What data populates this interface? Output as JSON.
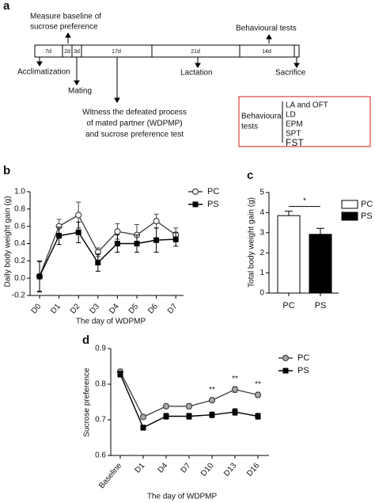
{
  "timeline": {
    "label": "a",
    "top_notes": [
      [
        "Measure baseline of",
        "sucrose preference"
      ],
      [
        "Behavioural tests"
      ]
    ],
    "segments": [
      "7d",
      "2d",
      "3d",
      "17d",
      "21d",
      "14d"
    ],
    "events": [
      "Acclimatization",
      "Mating",
      "Lactation",
      "Sacrifice"
    ],
    "witness": [
      "Witness the defeated process",
      "of mated partner (WDPMP)",
      "and sucrose preference test"
    ],
    "test_box": {
      "title": [
        "Behavioural",
        "tests"
      ],
      "items": [
        "LA and OFT",
        "LD",
        "EPM",
        "SPT",
        "FST"
      ]
    }
  },
  "chart_data": [
    {
      "label": "b",
      "type": "line",
      "y_label": "Daily body weight gain (g)",
      "x_label": "The day of WDPMP",
      "categories": [
        "D0",
        "D1",
        "D2",
        "D3",
        "D4",
        "D5",
        "D6",
        "D7"
      ],
      "ylim": [
        -0.2,
        1.0
      ],
      "yticks": [
        -0.2,
        {
          "value": 0,
          "label": "0.0"
        },
        0.2,
        0.4,
        0.6,
        0.8,
        {
          "value": 1,
          "label": "1.0"
        }
      ],
      "series": [
        {
          "name": "PC",
          "color": "#444444",
          "marker": "open-circle",
          "values": [
            0.02,
            0.6,
            0.73,
            0.3,
            0.54,
            0.5,
            0.66,
            0.5
          ],
          "errors": [
            0.17,
            0.08,
            0.15,
            0.05,
            0.09,
            0.12,
            0.08,
            0.08
          ]
        },
        {
          "name": "PS",
          "color": "#000000",
          "marker": "square",
          "values": [
            0.02,
            0.49,
            0.53,
            0.18,
            0.4,
            0.4,
            0.44,
            0.45
          ],
          "errors": [
            0.18,
            0.1,
            0.12,
            0.1,
            0.1,
            0.1,
            0.14,
            0.08
          ]
        }
      ]
    },
    {
      "label": "c",
      "type": "bar",
      "y_label": "Total body weight gain (g)",
      "categories": [
        "PC",
        "PS"
      ],
      "values": [
        3.85,
        2.92
      ],
      "errors": [
        0.22,
        0.3
      ],
      "colors": [
        "#ffffff",
        "#000000"
      ],
      "significance": "*",
      "ylim": [
        0,
        5
      ],
      "yticks": [
        0,
        1,
        2,
        3,
        4,
        5
      ]
    },
    {
      "label": "d",
      "type": "line",
      "y_label": "Sucrose preference",
      "x_label": "The day of WDPMP",
      "categories": [
        "Baseline",
        "D1",
        "D4",
        "D7",
        "D10",
        "D13",
        "D16"
      ],
      "ylim": [
        0.6,
        0.9
      ],
      "yticks": [
        0.6,
        0.7,
        0.8,
        0.9
      ],
      "annotations": [
        null,
        null,
        null,
        null,
        "**",
        "**",
        "**"
      ],
      "series": [
        {
          "name": "PC",
          "color": "#444444",
          "marker": "grey-circle",
          "values": [
            0.835,
            0.708,
            0.738,
            0.738,
            0.755,
            0.785,
            0.77
          ],
          "errors": [
            0.007,
            0.006,
            0.006,
            0.007,
            0.006,
            0.008,
            0.007
          ]
        },
        {
          "name": "PS",
          "color": "#000000",
          "marker": "square",
          "values": [
            0.828,
            0.678,
            0.71,
            0.71,
            0.714,
            0.722,
            0.71
          ],
          "errors": [
            0.008,
            0.007,
            0.008,
            0.008,
            0.008,
            0.009,
            0.008
          ]
        }
      ]
    }
  ]
}
